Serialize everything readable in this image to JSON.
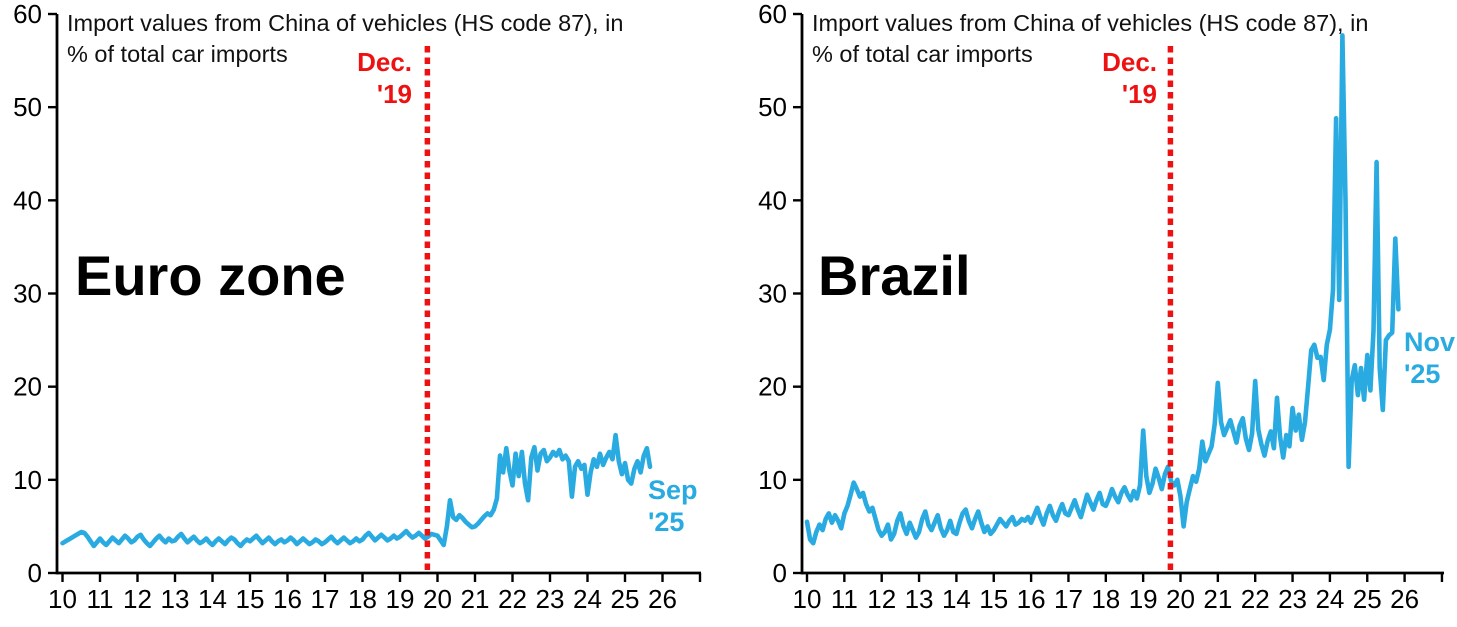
{
  "figure": {
    "background": "#ffffff"
  },
  "chart_data": [
    {
      "type": "line",
      "region_label": "Euro zone",
      "title_lines": [
        "Import values from China of vehicles (HS code 87), in",
        "% of total car imports"
      ],
      "ylabel": "",
      "xlabel": "",
      "ylim": [
        0,
        60
      ],
      "y_tick_labels": [
        "0",
        "10",
        "20",
        "30",
        "40",
        "50",
        "60"
      ],
      "x_tick_labels": [
        "10",
        "11",
        "12",
        "13",
        "14",
        "15",
        "16",
        "17",
        "18",
        "19",
        "20",
        "21",
        "22",
        "23",
        "24",
        "25",
        "26"
      ],
      "grid": false,
      "legend": "none",
      "line_color": "#29abe2",
      "event_line": {
        "label_lines": [
          "Dec.",
          "'19"
        ],
        "date": "Dec 2019",
        "axis_year_value": 19.73,
        "color": "#ee1111",
        "style": "dotted"
      },
      "end_label": {
        "lines": [
          "Sep",
          "'25"
        ],
        "color": "#29abe2"
      },
      "x_start_year": 2010,
      "points_per_year": 12,
      "values": [
        3.2,
        3.4,
        3.6,
        3.8,
        4.0,
        4.2,
        4.4,
        4.3,
        3.9,
        3.4,
        2.9,
        3.3,
        3.7,
        3.3,
        3.0,
        3.4,
        3.8,
        3.5,
        3.2,
        3.6,
        4.0,
        3.7,
        3.3,
        3.5,
        3.9,
        4.1,
        3.6,
        3.2,
        2.9,
        3.3,
        3.7,
        4.0,
        3.6,
        3.3,
        3.7,
        3.4,
        3.5,
        3.9,
        4.2,
        3.7,
        3.3,
        3.6,
        3.9,
        3.5,
        3.2,
        3.4,
        3.7,
        3.3,
        3.0,
        3.4,
        3.7,
        3.4,
        3.1,
        3.5,
        3.8,
        3.6,
        3.2,
        2.9,
        3.3,
        3.6,
        3.4,
        3.7,
        4.0,
        3.6,
        3.2,
        3.5,
        3.8,
        3.4,
        3.1,
        3.4,
        3.6,
        3.3,
        3.5,
        3.8,
        3.5,
        3.1,
        3.4,
        3.7,
        3.4,
        3.1,
        3.3,
        3.6,
        3.4,
        3.1,
        3.3,
        3.6,
        3.9,
        3.5,
        3.2,
        3.5,
        3.8,
        3.5,
        3.2,
        3.4,
        3.7,
        3.4,
        3.6,
        4.0,
        4.3,
        3.9,
        3.5,
        3.8,
        4.1,
        3.8,
        3.5,
        3.7,
        4.0,
        3.7,
        3.9,
        4.2,
        4.5,
        4.1,
        3.8,
        4.0,
        4.3,
        4.0,
        3.7,
        3.9,
        4.2,
        4.1,
        4.0,
        3.5,
        3.0,
        5.0,
        7.8,
        6.0,
        5.7,
        6.2,
        5.9,
        5.5,
        5.2,
        4.9,
        5.0,
        5.3,
        5.7,
        6.1,
        6.4,
        6.2,
        6.8,
        8.0,
        12.6,
        10.8,
        13.4,
        11.0,
        9.4,
        12.8,
        10.4,
        13.0,
        9.6,
        7.8,
        12.4,
        13.5,
        11.0,
        12.8,
        13.2,
        12.0,
        12.4,
        13.0,
        12.6,
        13.2,
        12.2,
        12.6,
        12.0,
        8.2,
        11.4,
        12.0,
        11.2,
        11.6,
        8.4,
        10.8,
        12.2,
        11.4,
        12.8,
        11.6,
        12.4,
        13.0,
        12.2,
        14.8,
        12.0,
        10.6,
        11.8,
        10.0,
        9.6,
        11.2,
        12.0,
        10.8,
        12.6,
        13.4,
        11.4
      ]
    },
    {
      "type": "line",
      "region_label": "Brazil",
      "title_lines": [
        "Import values from China of vehicles (HS code 87), in",
        "% of total car imports"
      ],
      "ylabel": "",
      "xlabel": "",
      "ylim": [
        0,
        60
      ],
      "y_tick_labels": [
        "0",
        "10",
        "20",
        "30",
        "40",
        "50",
        "60"
      ],
      "x_tick_labels": [
        "10",
        "11",
        "12",
        "13",
        "14",
        "15",
        "16",
        "17",
        "18",
        "19",
        "20",
        "21",
        "22",
        "23",
        "24",
        "25",
        "26"
      ],
      "grid": false,
      "legend": "none",
      "line_color": "#29abe2",
      "event_line": {
        "label_lines": [
          "Dec.",
          "'19"
        ],
        "date": "Dec 2019",
        "axis_year_value": 19.73,
        "color": "#ee1111",
        "style": "dotted"
      },
      "end_label": {
        "lines": [
          "Nov",
          "'25"
        ],
        "color": "#29abe2"
      },
      "x_start_year": 2010,
      "points_per_year": 12,
      "values": [
        5.5,
        3.6,
        3.2,
        4.4,
        5.2,
        4.6,
        5.8,
        6.4,
        5.4,
        6.2,
        5.6,
        4.8,
        6.4,
        7.2,
        8.4,
        9.7,
        9.0,
        8.2,
        8.6,
        7.4,
        6.6,
        7.0,
        5.8,
        4.6,
        4.0,
        4.4,
        5.2,
        3.6,
        4.2,
        5.6,
        6.4,
        5.0,
        4.2,
        5.4,
        4.6,
        3.8,
        4.4,
        5.8,
        6.6,
        5.2,
        4.6,
        5.4,
        6.2,
        4.8,
        4.0,
        4.6,
        5.6,
        4.4,
        4.2,
        5.4,
        6.4,
        6.8,
        5.6,
        4.8,
        5.8,
        6.6,
        5.4,
        4.4,
        5.0,
        4.2,
        4.6,
        5.2,
        5.8,
        5.4,
        5.0,
        5.6,
        6.0,
        5.2,
        5.4,
        5.8,
        5.6,
        6.0,
        5.4,
        6.2,
        7.0,
        6.0,
        5.2,
        6.4,
        7.2,
        6.2,
        5.6,
        6.6,
        7.4,
        6.4,
        6.2,
        7.0,
        7.8,
        6.8,
        6.0,
        7.2,
        8.4,
        7.6,
        6.8,
        7.8,
        8.6,
        7.4,
        7.2,
        8.0,
        9.0,
        8.2,
        7.6,
        8.6,
        9.2,
        8.4,
        7.8,
        8.8,
        8.0,
        9.4,
        15.3,
        10.4,
        8.6,
        9.6,
        11.2,
        10.2,
        9.0,
        10.6,
        11.4,
        9.8,
        9.4,
        10.0,
        8.2,
        5.0,
        7.6,
        9.0,
        10.4,
        9.8,
        11.2,
        14.1,
        12.0,
        12.8,
        13.6,
        16.0,
        20.4,
        16.2,
        14.8,
        15.6,
        16.4,
        15.2,
        14.0,
        15.8,
        16.6,
        14.4,
        13.2,
        15.0,
        20.6,
        15.4,
        13.8,
        12.6,
        14.2,
        15.2,
        13.4,
        18.8,
        14.6,
        12.4,
        14.8,
        13.6,
        17.7,
        15.3,
        17.0,
        14.3,
        16.2,
        20.0,
        23.9,
        24.5,
        23.1,
        23.2,
        20.7,
        24.5,
        26.1,
        30.4,
        48.8,
        29.3,
        57.7,
        40.0,
        11.4,
        20.7,
        22.3,
        19.1,
        22.0,
        18.6,
        23.4,
        19.6,
        26.0,
        44.1,
        22.0,
        17.5,
        25.0,
        25.5,
        25.8,
        35.9,
        28.3
      ]
    }
  ]
}
